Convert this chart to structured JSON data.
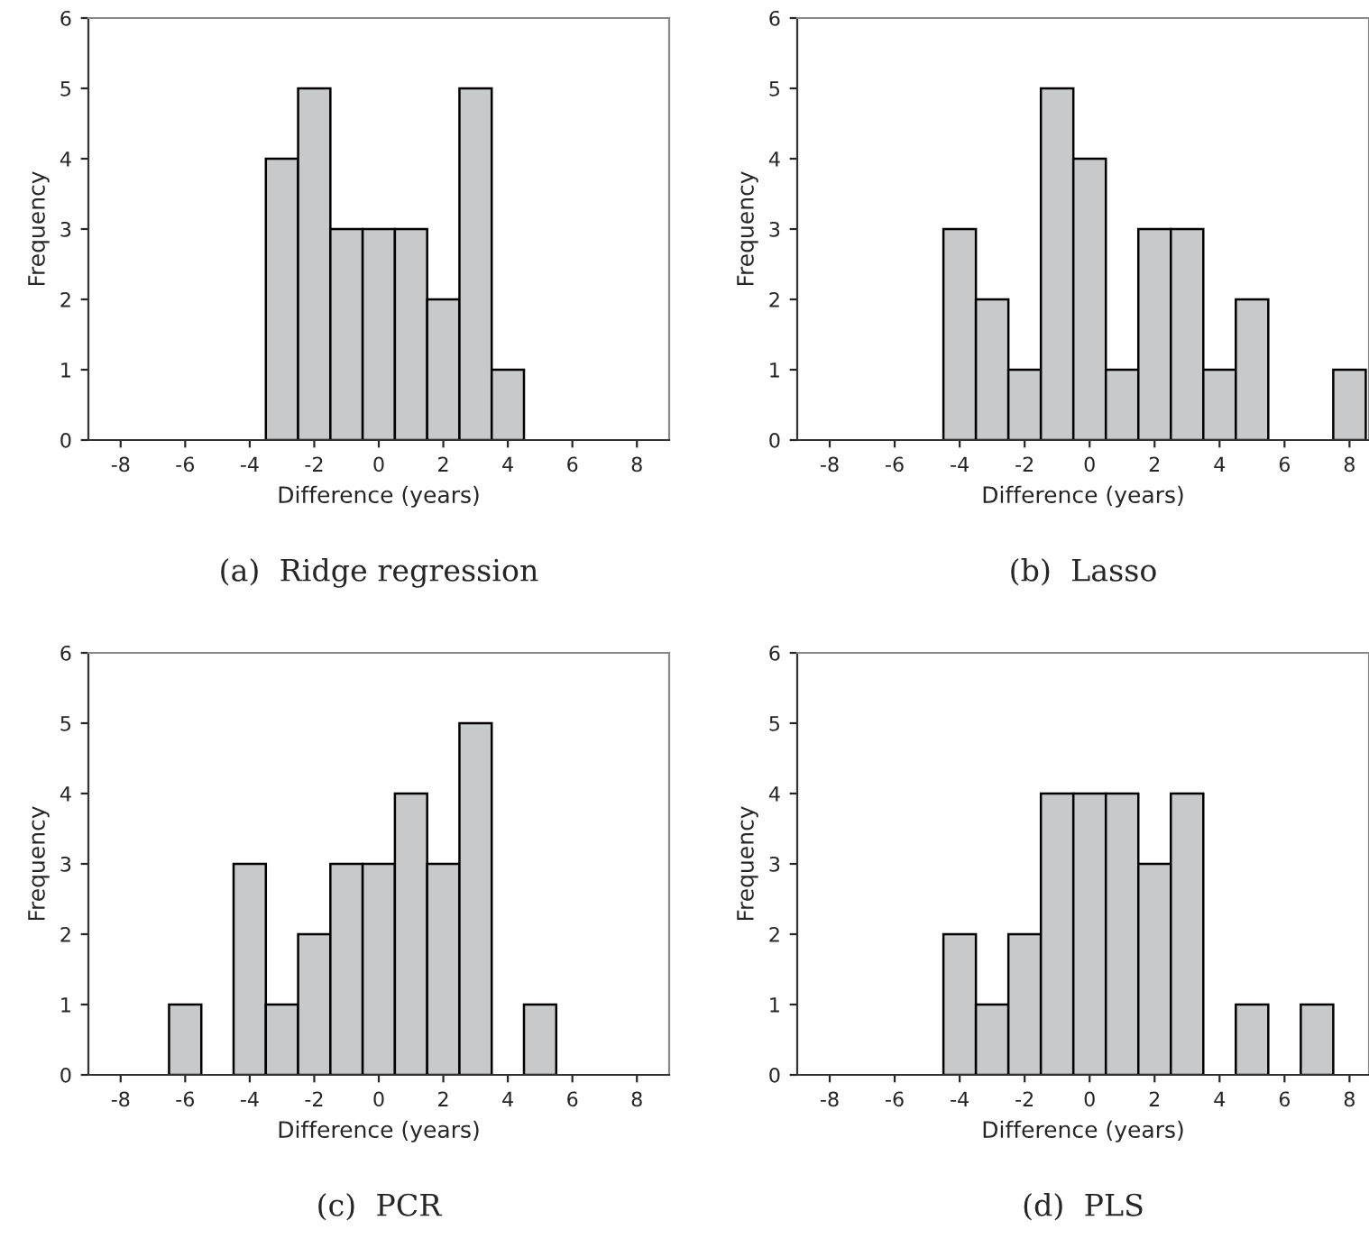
{
  "chart_data": [
    {
      "type": "histogram",
      "title": "(a)  Ridge regression",
      "xlabel": "Difference (years)",
      "ylabel": "Frequency",
      "bins": [
        -3.5,
        -2.5,
        -1.5,
        -0.5,
        0.5,
        1.5,
        2.5,
        3.5,
        4.5
      ],
      "values": [
        4,
        5,
        3,
        3,
        3,
        2,
        5,
        1
      ],
      "color": "#c8c9cb",
      "xlim": [
        -9,
        9
      ],
      "xticks": [
        -8,
        -6,
        -4,
        -2,
        0,
        2,
        4,
        6,
        8
      ],
      "ylim": [
        0,
        6
      ],
      "yticks": [
        0,
        1,
        2,
        3,
        4,
        5,
        6
      ],
      "grid": false
    },
    {
      "type": "histogram",
      "title": "(b)  Lasso",
      "xlabel": "Difference (years)",
      "ylabel": "Frequency",
      "bins": [
        -4.5,
        -3.5,
        -2.5,
        -1.5,
        -0.5,
        0.5,
        1.5,
        2.5,
        3.5,
        4.5,
        5.5,
        6.5,
        7.5,
        8.5
      ],
      "values": [
        3,
        2,
        1,
        5,
        4,
        1,
        3,
        3,
        1,
        2,
        0,
        0,
        1
      ],
      "color": "#c8c9cb",
      "xlim": [
        -9,
        8.6
      ],
      "xticks": [
        -8,
        -6,
        -4,
        -2,
        0,
        2,
        4,
        6,
        8
      ],
      "ylim": [
        0,
        6
      ],
      "yticks": [
        0,
        1,
        2,
        3,
        4,
        5,
        6
      ],
      "grid": false
    },
    {
      "type": "histogram",
      "title": "(c)  PCR",
      "xlabel": "Difference (years)",
      "ylabel": "Frequency",
      "bins": [
        -6.5,
        -5.5,
        -4.5,
        -3.5,
        -2.5,
        -1.5,
        -0.5,
        0.5,
        1.5,
        2.5,
        3.5,
        4.5,
        5.5
      ],
      "values": [
        1,
        0,
        3,
        1,
        2,
        3,
        3,
        4,
        3,
        5,
        0,
        1
      ],
      "color": "#c8c9cb",
      "xlim": [
        -9,
        9
      ],
      "xticks": [
        -8,
        -6,
        -4,
        -2,
        0,
        2,
        4,
        6,
        8
      ],
      "ylim": [
        0,
        6
      ],
      "yticks": [
        0,
        1,
        2,
        3,
        4,
        5,
        6
      ],
      "grid": false
    },
    {
      "type": "histogram",
      "title": "(d)  PLS",
      "xlabel": "Difference (years)",
      "ylabel": "Frequency",
      "bins": [
        -4.5,
        -3.5,
        -2.5,
        -1.5,
        -0.5,
        0.5,
        1.5,
        2.5,
        3.5,
        4.5,
        5.5,
        6.5,
        7.5
      ],
      "values": [
        2,
        1,
        2,
        4,
        4,
        4,
        3,
        4,
        0,
        1,
        0,
        1
      ],
      "color": "#c8c9cb",
      "xlim": [
        -9,
        8.6
      ],
      "xticks": [
        -8,
        -6,
        -4,
        -2,
        0,
        2,
        4,
        6,
        8
      ],
      "ylim": [
        0,
        6
      ],
      "yticks": [
        0,
        1,
        2,
        3,
        4,
        5,
        6
      ],
      "grid": false
    }
  ]
}
